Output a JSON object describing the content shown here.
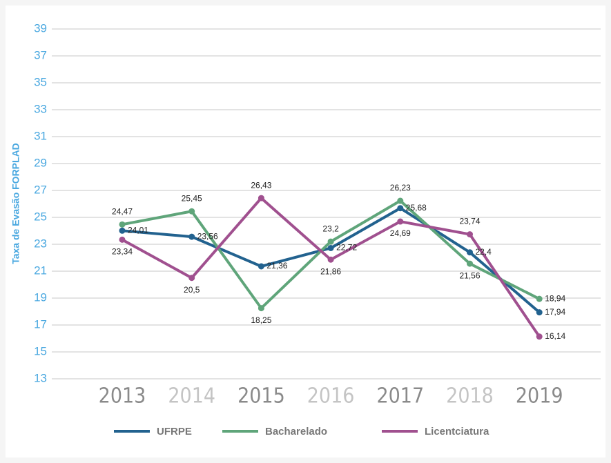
{
  "chart_data": {
    "type": "line",
    "y_label": "Taxa de Evasão FORPLAD",
    "categories": [
      "2013",
      "2014",
      "2015",
      "2016",
      "2017",
      "2018",
      "2019"
    ],
    "series": [
      {
        "name": "UFRPE",
        "color": "#22628f",
        "values": [
          24.01,
          23.56,
          21.36,
          22.72,
          25.68,
          22.4,
          17.94
        ],
        "value_labels": [
          "24,01",
          "23,56",
          "21,36",
          "22,72",
          "25,68",
          "22,4",
          "17,94"
        ]
      },
      {
        "name": "Bacharelado",
        "color": "#5fa57a",
        "values": [
          24.47,
          25.45,
          18.25,
          23.2,
          26.23,
          21.56,
          18.94
        ],
        "value_labels": [
          "24,47",
          "25,45",
          "18,25",
          "23,2",
          "26,23",
          "21,56",
          "18,94"
        ]
      },
      {
        "name": "Licentciatura",
        "color": "#a0508f",
        "values": [
          23.34,
          20.5,
          26.43,
          21.86,
          24.69,
          23.74,
          16.14
        ],
        "value_labels": [
          "23,34",
          "20,5",
          "26,43",
          "21,86",
          "24,69",
          "23,74",
          "16,14"
        ]
      }
    ],
    "ylim": [
      13,
      39
    ],
    "yticks": [
      13,
      15,
      17,
      19,
      21,
      23,
      25,
      27,
      29,
      31,
      33,
      35,
      37,
      39
    ],
    "grid": true
  }
}
